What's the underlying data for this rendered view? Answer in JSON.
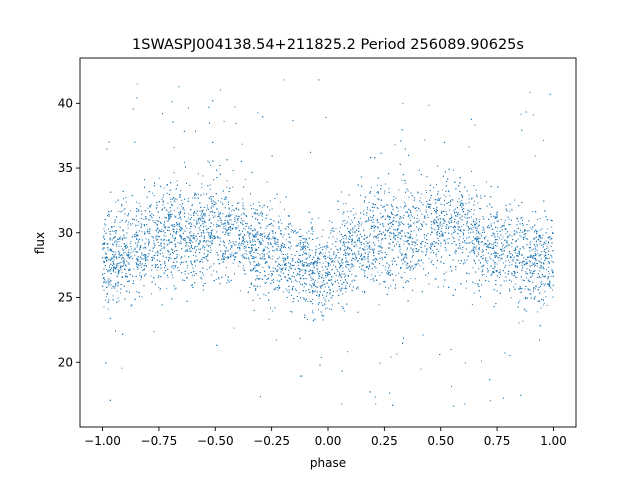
{
  "chart_data": {
    "type": "scatter",
    "title": "1SWASPJ004138.54+211825.2 Period 256089.90625s",
    "xlabel": "phase",
    "ylabel": "flux",
    "xlim": [
      -1.1,
      1.1
    ],
    "ylim": [
      15.0,
      43.5
    ],
    "x_ticks": [
      -1.0,
      -0.75,
      -0.5,
      -0.25,
      0.0,
      0.25,
      0.5,
      0.75,
      1.0
    ],
    "x_tick_labels": [
      "−1.00",
      "−0.75",
      "−0.50",
      "−0.25",
      "0.00",
      "0.25",
      "0.50",
      "0.75",
      "1.00"
    ],
    "y_ticks": [
      20,
      25,
      30,
      35,
      40
    ],
    "y_tick_labels": [
      "20",
      "25",
      "30",
      "35",
      "40"
    ],
    "grid": false,
    "marker_color": "#1f77b4",
    "series": [
      {
        "description_of_trend": "mean flux vs phase (folded light curve, mirrored over [-1,1])",
        "x": [
          -1.0,
          -0.9,
          -0.8,
          -0.7,
          -0.6,
          -0.5,
          -0.4,
          -0.3,
          -0.2,
          -0.1,
          0.0,
          0.1,
          0.2,
          0.3,
          0.4,
          0.5,
          0.6,
          0.7,
          0.8,
          0.9,
          1.0
        ],
        "y": [
          27.5,
          28.5,
          29.5,
          30.0,
          30.0,
          30.5,
          30.0,
          29.0,
          28.0,
          27.5,
          26.5,
          28.5,
          29.5,
          30.0,
          30.0,
          30.5,
          30.0,
          29.0,
          28.5,
          28.0,
          27.5
        ],
        "spread": [
          3.0,
          3.2,
          3.3,
          3.3,
          3.3,
          3.3,
          3.3,
          3.2,
          3.0,
          2.8,
          3.0,
          3.2,
          3.3,
          3.3,
          3.3,
          3.3,
          3.3,
          3.2,
          3.1,
          3.0,
          3.0
        ]
      }
    ]
  }
}
